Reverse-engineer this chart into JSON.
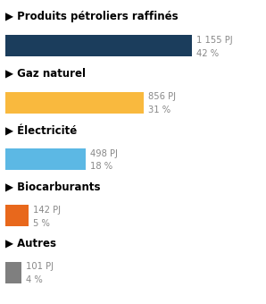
{
  "categories": [
    "Produits pétroliers raffinés",
    "Gaz naturel",
    "Électricité",
    "Biocarburants",
    "Autres"
  ],
  "values": [
    1155,
    856,
    498,
    142,
    101
  ],
  "labels_pj": [
    "1 155 PJ",
    "856 PJ",
    "498 PJ",
    "142 PJ",
    "101 PJ"
  ],
  "labels_pct": [
    "42 %",
    "31 %",
    "18 %",
    "5 %",
    "4 %"
  ],
  "bar_colors": [
    "#1b3d5c",
    "#f9b93e",
    "#5cb8e4",
    "#e8681c",
    "#7f7f7f"
  ],
  "arrow_colors": [
    "#1b3d5c",
    "#f9b93e",
    "#5cb8e4",
    "#e8681c",
    "#7f7f7f"
  ],
  "background_color": "#ffffff",
  "max_value": 1155,
  "fontsize_cat": 8.5,
  "fontsize_val": 7.2,
  "label_color": "#888888"
}
